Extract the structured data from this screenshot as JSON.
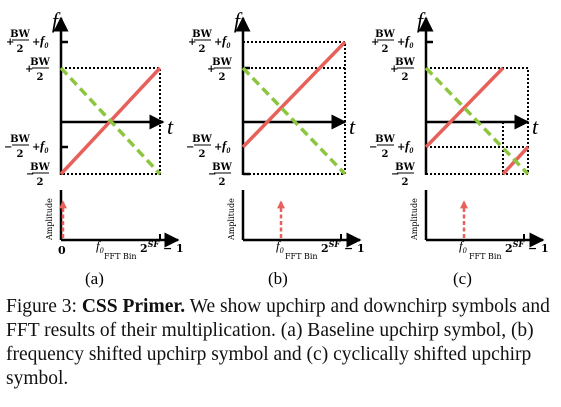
{
  "figure": {
    "axis_f": "f",
    "axis_t": "t",
    "amp_axis_label": "Amplitude",
    "fft_bin_label": "FFT Bin",
    "bin_zero": "0",
    "bin_f0": "f",
    "bin_f0_sub": "0",
    "bin_max_base": "2",
    "bin_max_sup": "SF",
    "bin_max_tail": " − 1",
    "label_bw": "BW",
    "label_two": "2",
    "label_plus": "+",
    "label_minus": "−",
    "label_f0": "f",
    "label_f0_sub": "0",
    "colors": {
      "upchirp": "#e8605a",
      "downchirp": "#8cc63f",
      "peak": "#e8605a",
      "axis": "#000000"
    },
    "panels": [
      {
        "id": "a",
        "sublabel": "(a)"
      },
      {
        "id": "b",
        "sublabel": "(b)"
      },
      {
        "id": "c",
        "sublabel": "(c)"
      }
    ]
  },
  "caption": {
    "figure_label": "Figure 3:",
    "title": "CSS Primer.",
    "text": "We show upchirp and downchirp symbols and FFT results of their multiplication. (a) Baseline upchirp symbol, (b) frequency shifted upchirp symbol and (c) cyclically shifted upchirp symbol."
  }
}
